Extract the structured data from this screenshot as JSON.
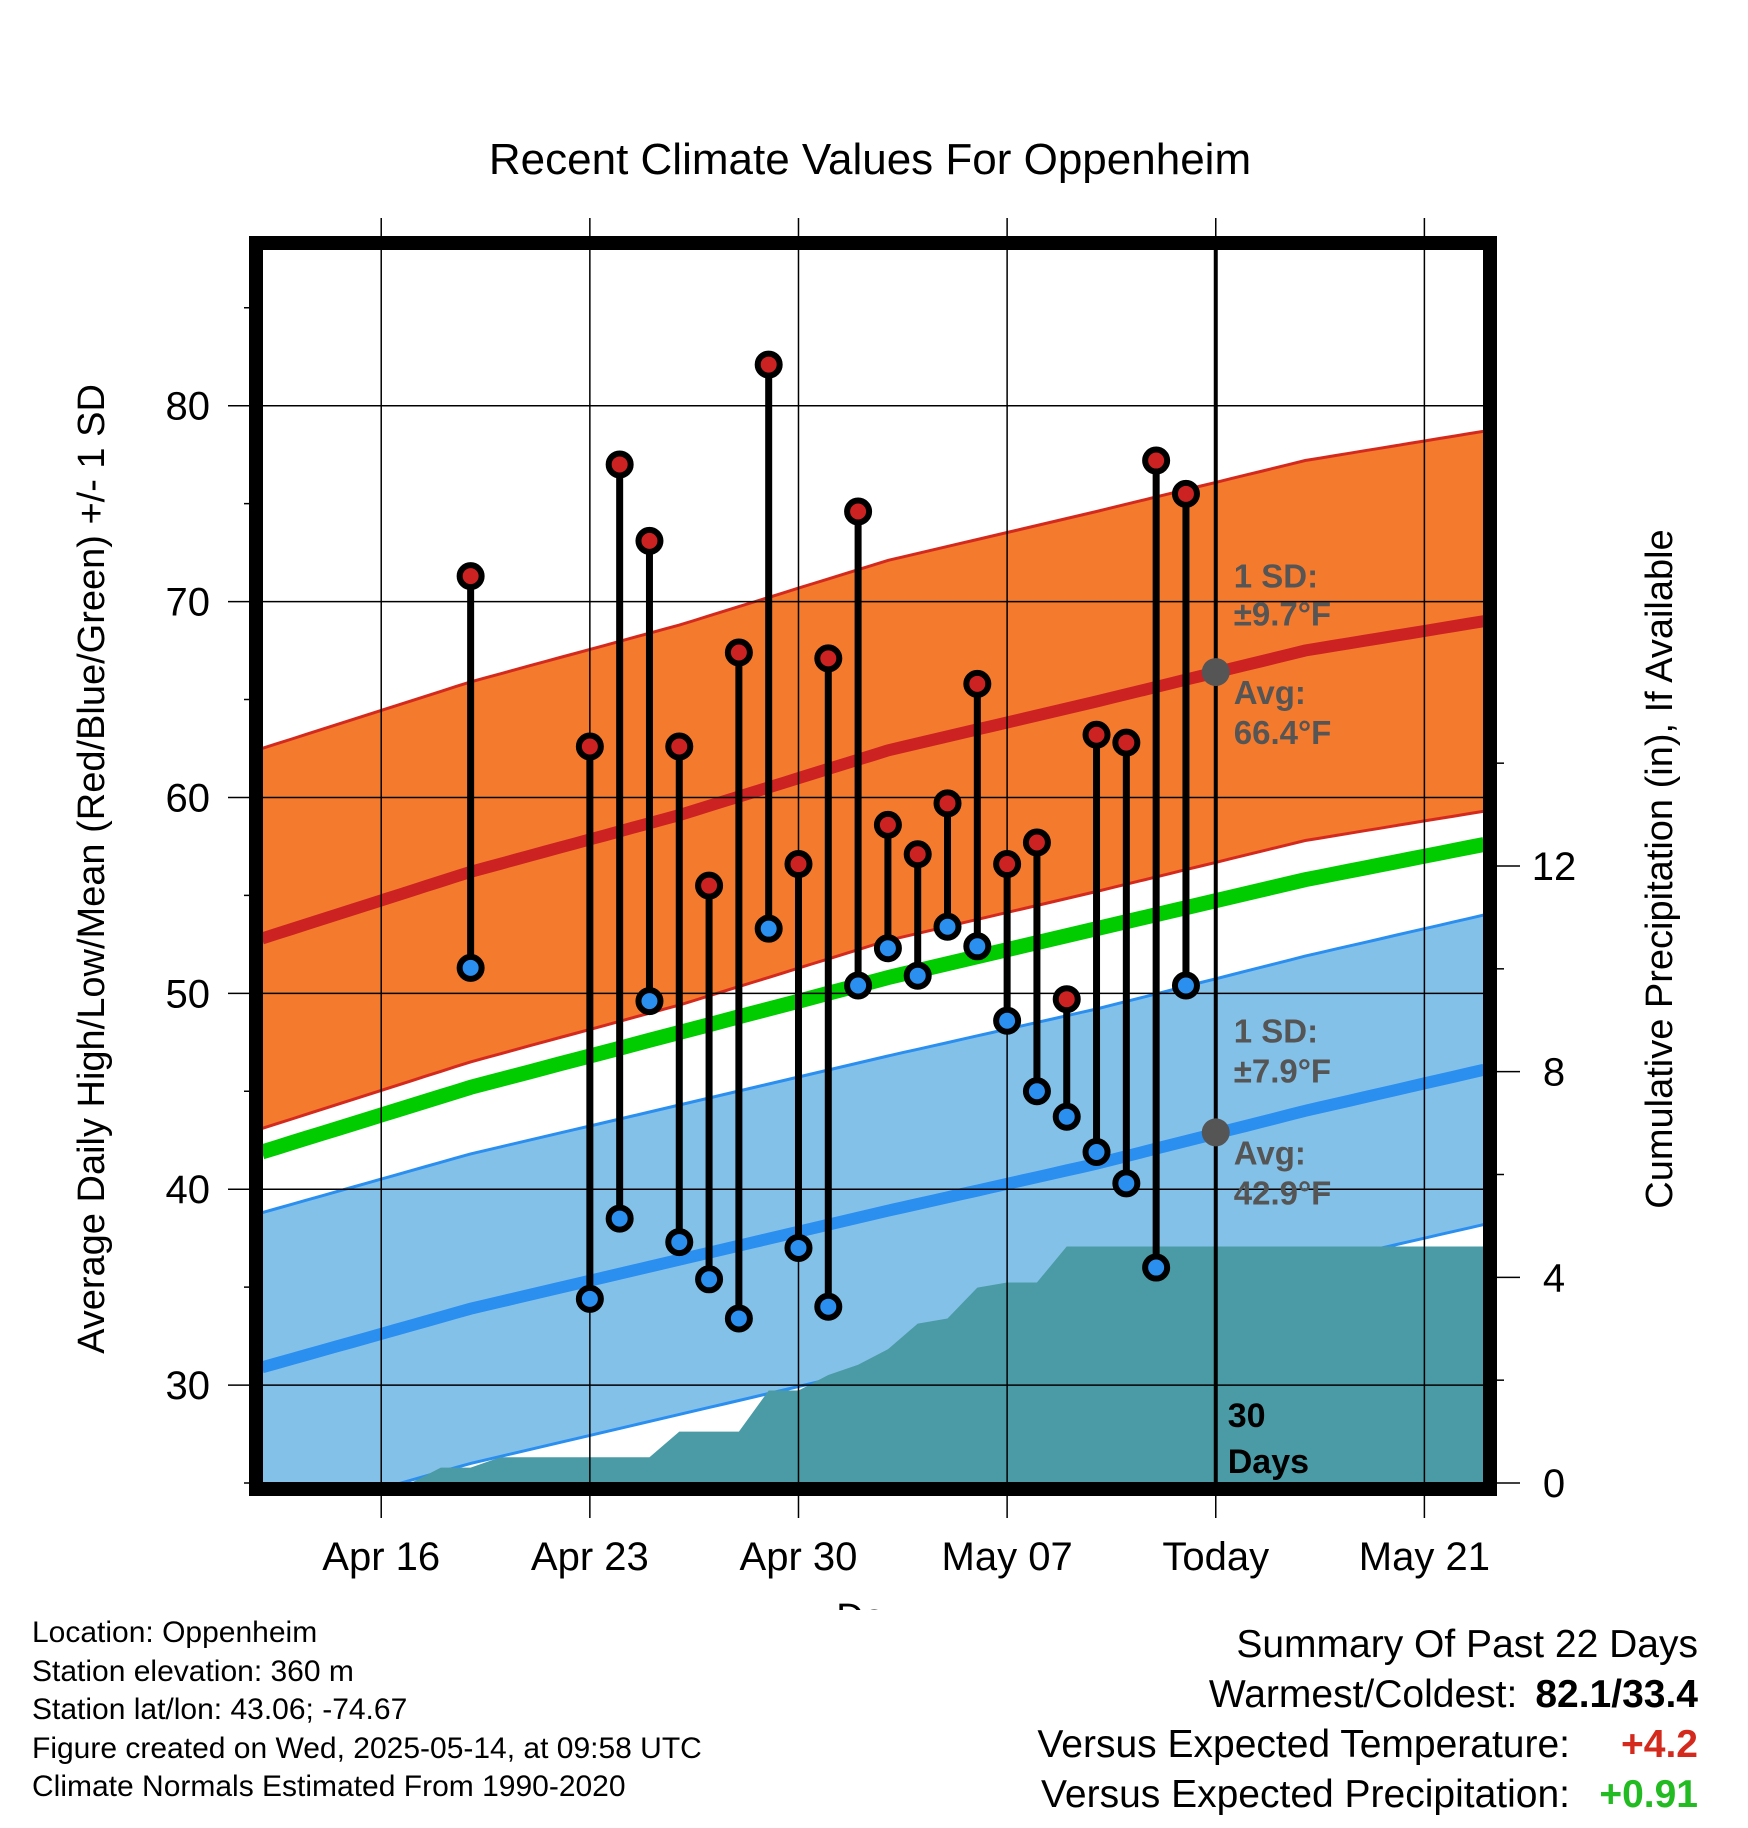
{
  "chart_data": {
    "type": "line",
    "title": "Recent Climate Values For Oppenheim",
    "xlabel": "Day",
    "ylabel": "Average Daily High/Low/Mean (Red/Blue/Green) +/- 1 SD",
    "y2label": "Cumulative Precipitation (in), If Available",
    "xlim": [
      "Apr 12",
      "May 23"
    ],
    "ylim": [
      25,
      88
    ],
    "y2lim": [
      0,
      24
    ],
    "x_tick_labels": [
      "Apr 16",
      "Apr 23",
      "Apr 30",
      "May 07",
      "Today",
      "May 21"
    ],
    "x_tick_dates": [
      "Apr 16",
      "Apr 23",
      "Apr 30",
      "May 07",
      "May 14",
      "May 21"
    ],
    "y_ticks": [
      30,
      40,
      50,
      60,
      70,
      80
    ],
    "y2_ticks": [
      0,
      4,
      8,
      12
    ],
    "today": "May 14",
    "today_label": "30\nDays",
    "normals": {
      "dates": [
        "Apr 12",
        "Apr 19",
        "Apr 26",
        "May 03",
        "May 10",
        "May 17",
        "May 23"
      ],
      "high_mean": [
        52.8,
        56.2,
        59.1,
        62.4,
        64.9,
        67.5,
        69.0
      ],
      "high_sd": 9.7,
      "low_mean": [
        30.9,
        33.9,
        36.4,
        38.9,
        41.3,
        44.0,
        46.1
      ],
      "low_sd": 7.9,
      "mean": [
        41.9,
        45.2,
        48.0,
        50.8,
        53.3,
        55.8,
        57.6
      ]
    },
    "series": [
      {
        "name": "Daily High",
        "color": "#cc2222",
        "dates": [
          "Apr 19",
          "Apr 23",
          "Apr 24",
          "Apr 25",
          "Apr 26",
          "Apr 27",
          "Apr 28",
          "Apr 29",
          "Apr 30",
          "May 01",
          "May 02",
          "May 03",
          "May 04",
          "May 05",
          "May 06",
          "May 07",
          "May 08",
          "May 09",
          "May 10",
          "May 11",
          "May 12",
          "May 13"
        ],
        "values": [
          71.3,
          62.6,
          77.0,
          73.1,
          62.6,
          55.5,
          67.4,
          82.1,
          56.6,
          67.1,
          74.6,
          58.6,
          57.1,
          59.7,
          65.8,
          56.6,
          57.7,
          49.7,
          63.2,
          62.8,
          77.2,
          75.5
        ]
      },
      {
        "name": "Daily Low",
        "color": "#2b8ff0",
        "dates": [
          "Apr 19",
          "Apr 23",
          "Apr 24",
          "Apr 25",
          "Apr 26",
          "Apr 27",
          "Apr 28",
          "Apr 29",
          "Apr 30",
          "May 01",
          "May 02",
          "May 03",
          "May 04",
          "May 05",
          "May 06",
          "May 07",
          "May 08",
          "May 09",
          "May 10",
          "May 11",
          "May 12",
          "May 13"
        ],
        "values": [
          51.3,
          34.4,
          38.5,
          49.6,
          37.3,
          35.4,
          33.4,
          53.3,
          37.0,
          34.0,
          50.4,
          52.3,
          50.9,
          53.4,
          52.4,
          48.6,
          45.0,
          43.7,
          41.9,
          40.3,
          36.0,
          50.4
        ]
      },
      {
        "name": "Cumulative Precipitation",
        "color": "#4a9ba5",
        "dates": [
          "Apr 12",
          "Apr 17",
          "Apr 18",
          "Apr 19",
          "Apr 20",
          "Apr 21",
          "Apr 22",
          "Apr 23",
          "Apr 24",
          "Apr 25",
          "Apr 26",
          "Apr 27",
          "Apr 28",
          "Apr 29",
          "Apr 30",
          "May 01",
          "May 02",
          "May 03",
          "May 04",
          "May 05",
          "May 06",
          "May 07",
          "May 08",
          "May 09",
          "May 10",
          "May 23"
        ],
        "values": [
          0,
          0,
          0.3,
          0.3,
          0.5,
          0.5,
          0.5,
          0.5,
          0.5,
          0.5,
          1.0,
          1.0,
          1.0,
          1.8,
          1.8,
          2.1,
          2.3,
          2.6,
          3.1,
          3.2,
          3.8,
          3.9,
          3.9,
          4.6,
          4.6,
          4.6
        ]
      }
    ],
    "annotations": {
      "high_sd_line1": "1 SD:",
      "high_sd_line2": "±9.7°F",
      "high_avg_line1": "Avg:",
      "high_avg_line2": "66.4°F",
      "low_sd_line1": "1 SD:",
      "low_sd_line2": "±7.9°F",
      "low_avg_line1": "Avg:",
      "low_avg_line2": "42.9°F",
      "today_high_avg": 66.4,
      "today_low_avg": 42.9
    },
    "colors": {
      "high_band": "#f47a2e",
      "high_band_edge": "#d42a1e",
      "high_mean": "#cc2222",
      "low_band": "#84c1e8",
      "low_band_edge": "#2b8ff0",
      "low_mean": "#2b8ff0",
      "mean": "#00cc00",
      "precip": "#4a9ba5",
      "marker_today": "#555555"
    }
  },
  "info": {
    "location": "Location: Oppenheim",
    "elevation": "Station elevation: 360 m",
    "latlon": "Station lat/lon: 43.06; -74.67",
    "created": "Figure created on Wed, 2025-05-14, at 09:58 UTC",
    "normals": "Climate Normals Estimated From 1990-2020"
  },
  "summary": {
    "title": "Summary Of Past 22 Days",
    "warmest_label": "Warmest/Coldest:",
    "warmest_value": "82.1/33.4",
    "temp_label": "Versus Expected Temperature:",
    "temp_value": "+4.2",
    "temp_color": "#d42a1e",
    "precip_label": "Versus Expected Precipitation:",
    "precip_value": "+0.91",
    "precip_color": "#22bb22"
  }
}
